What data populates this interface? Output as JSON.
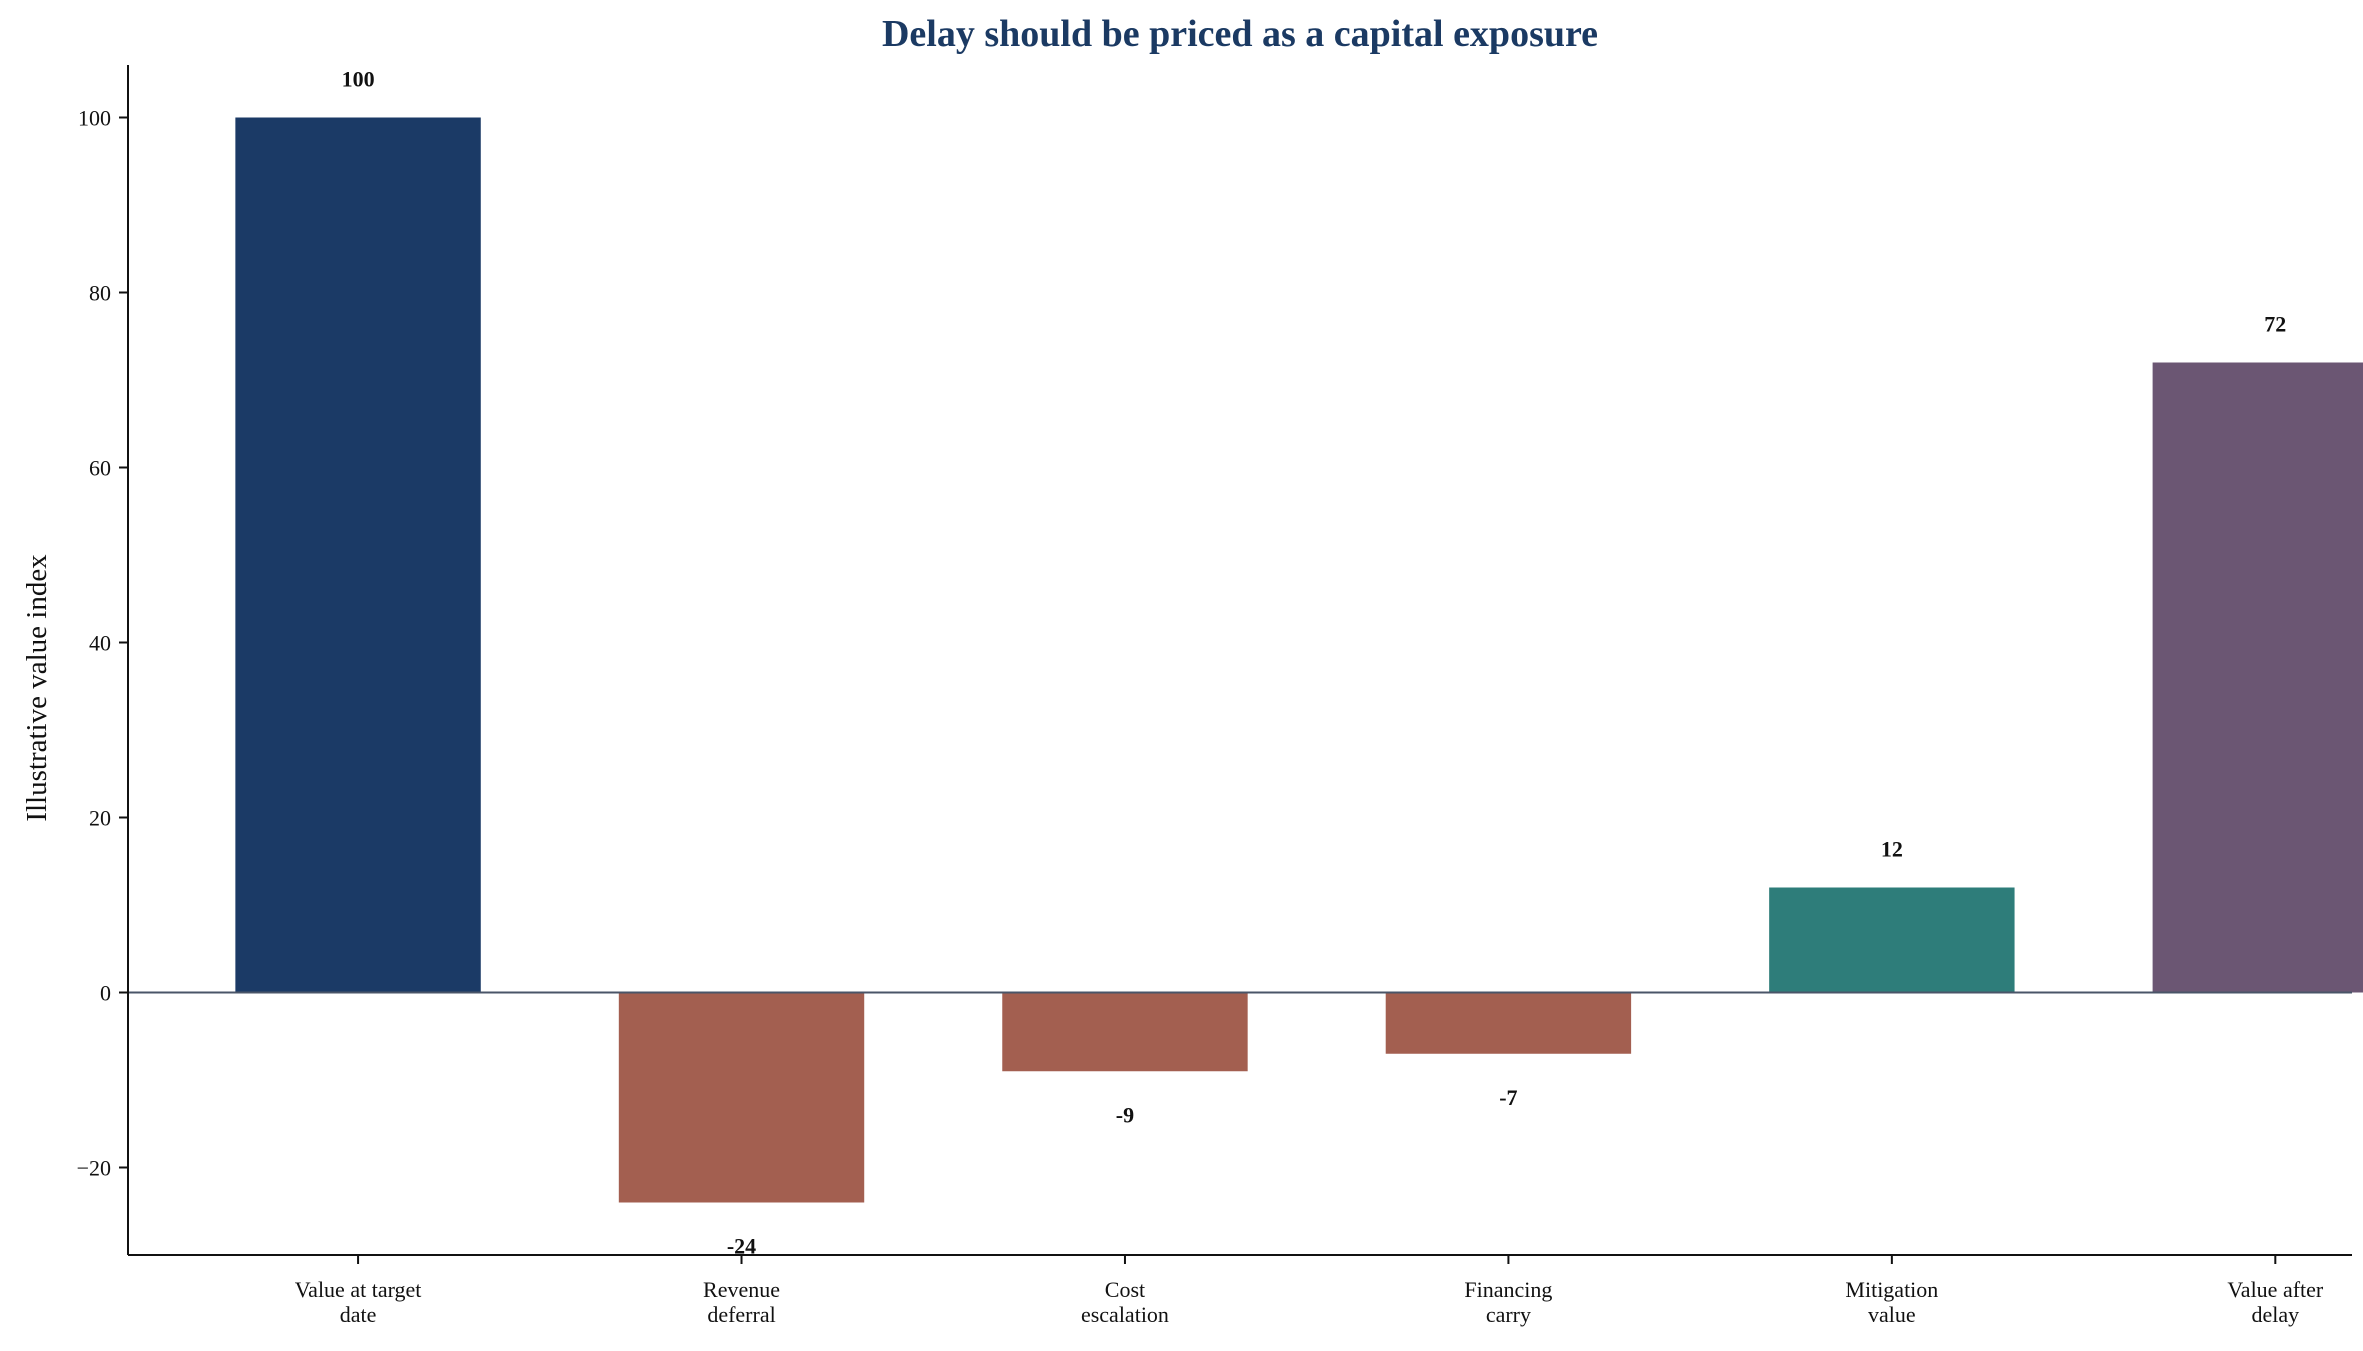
{
  "chart_data": {
    "type": "bar",
    "title": "Delay should be priced as a capital exposure",
    "xlabel": "",
    "ylabel": "Illustrative value index",
    "categories": [
      [
        "Value at target",
        "date"
      ],
      [
        "Revenue",
        "deferral"
      ],
      [
        "Cost",
        "escalation"
      ],
      [
        "Financing",
        "carry"
      ],
      [
        "Mitigation",
        "value"
      ],
      [
        "Value after",
        "delay"
      ]
    ],
    "values": [
      100,
      -24,
      -9,
      -7,
      12,
      72
    ],
    "data_labels": [
      "100",
      "-24",
      "-9",
      "-7",
      "12",
      "72"
    ],
    "bar_colors": [
      "#1b3a66",
      "#a35f50",
      "#a35f50",
      "#a35f50",
      "#2e7d7a",
      "#6b5673"
    ],
    "ylim": [
      -30,
      106
    ],
    "yticks": [
      -20,
      0,
      20,
      40,
      60,
      80,
      100
    ],
    "ytick_labels": [
      "−20",
      "0",
      "20",
      "40",
      "60",
      "80",
      "100"
    ],
    "grid": false,
    "zero_line_color": "#4a5568",
    "title_color": "#1b3a63"
  }
}
